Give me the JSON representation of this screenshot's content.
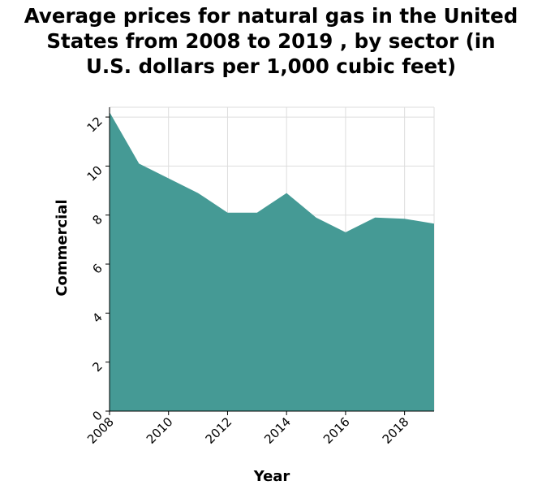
{
  "chart_data": {
    "type": "area",
    "title_lines": [
      "Average prices for natural gas in the United",
      "States from 2008 to 2019 , by sector (in",
      "U.S. dollars per 1,000 cubic feet)"
    ],
    "xlabel": "Year",
    "ylabel": "Commercial",
    "xlim": [
      2008,
      2019
    ],
    "ylim": [
      0,
      12.4
    ],
    "x_ticks": [
      2008,
      2010,
      2012,
      2014,
      2016,
      2018
    ],
    "y_ticks": [
      0,
      2,
      4,
      6,
      8,
      10,
      12
    ],
    "grid": true,
    "fill_color": "#459a95",
    "series": [
      {
        "x": [
          2008,
          2009,
          2010,
          2011,
          2012,
          2013,
          2014,
          2015,
          2016,
          2017,
          2018,
          2019
        ],
        "values": [
          12.2,
          10.1,
          9.5,
          8.9,
          8.1,
          8.1,
          8.9,
          7.9,
          7.3,
          7.9,
          7.85,
          7.65
        ]
      }
    ]
  }
}
